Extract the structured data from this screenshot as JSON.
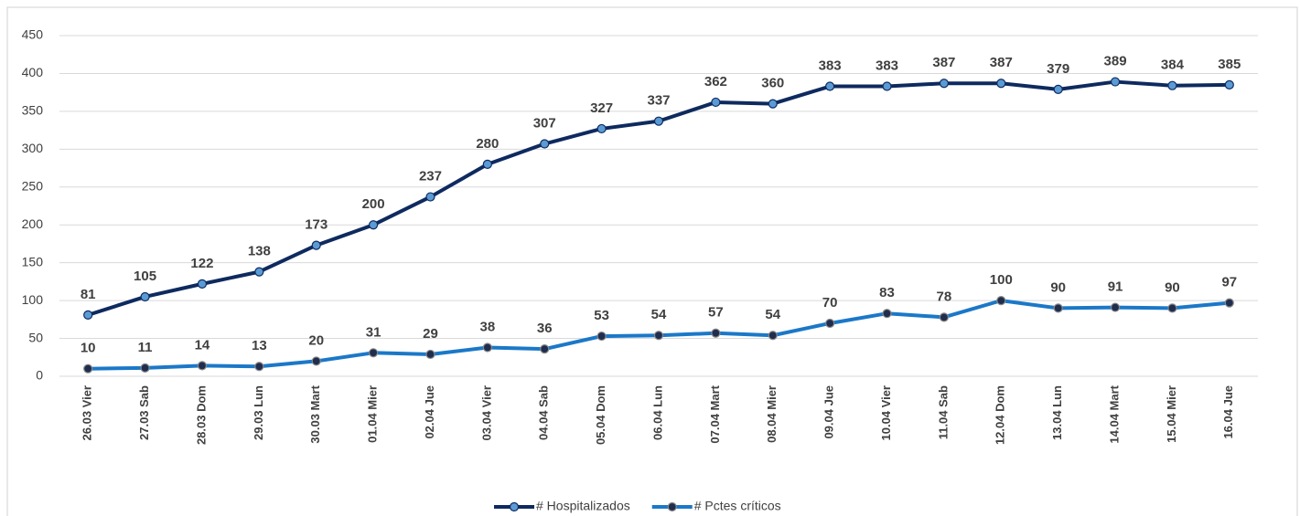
{
  "chart_data": {
    "type": "line",
    "categories": [
      "26.03 Vier",
      "27.03 Sab",
      "28.03 Dom",
      "29.03 Lun",
      "30.03 Mart",
      "01.04 Mier",
      "02.04 Jue",
      "03.04 Vier",
      "04.04 Sab",
      "05.04 Dom",
      "06.04 Lun",
      "07.04 Mart",
      "08.04 Mier",
      "09.04 Jue",
      "10.04 Vier",
      "11.04 Sab",
      "12.04 Dom",
      "13.04 Lun",
      "14.04 Mart",
      "15.04 Mier",
      "16.04 Jue"
    ],
    "series": [
      {
        "name": "# Hospitalizados",
        "color": "#0e2a5f",
        "marker_color": "#5b9bd5",
        "values": [
          81,
          105,
          122,
          138,
          173,
          200,
          237,
          280,
          307,
          327,
          337,
          362,
          360,
          383,
          383,
          387,
          387,
          379,
          389,
          384,
          385
        ]
      },
      {
        "name": "# Pctes críticos",
        "color": "#1b78c8",
        "marker_color": "#1f2d4e",
        "values": [
          10,
          11,
          14,
          13,
          20,
          31,
          29,
          38,
          36,
          53,
          54,
          57,
          54,
          70,
          83,
          78,
          100,
          90,
          91,
          90,
          97
        ]
      }
    ],
    "ylim": [
      0,
      450
    ],
    "yticks": [
      0,
      50,
      100,
      150,
      200,
      250,
      300,
      350,
      400,
      450
    ],
    "grid": true,
    "legend": "bottom"
  }
}
